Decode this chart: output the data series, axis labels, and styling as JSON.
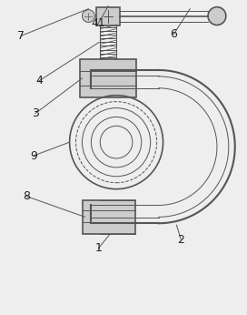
{
  "bg_color": "#eeeeee",
  "line_color": "#555555",
  "lw_main": 1.2,
  "lw_thin": 0.7,
  "lw_thick": 1.5
}
